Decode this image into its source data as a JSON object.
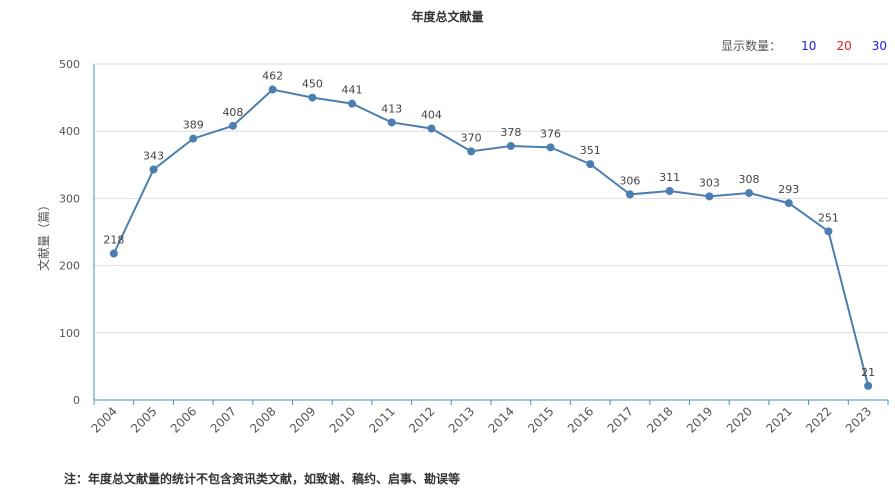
{
  "header": {
    "title": "年度总文献量"
  },
  "count_selector": {
    "label": "显示数量：",
    "options": [
      {
        "label": "10",
        "color": "#1a1ae6"
      },
      {
        "label": "20",
        "color": "#e61a1a"
      },
      {
        "label": "30",
        "color": "#1a1ae6"
      }
    ]
  },
  "footnote": "注：年度总文献量的统计不包含资讯类文献，如致谢、稿约、启事、勘误等",
  "chart_data": {
    "type": "line",
    "title": "年度总文献量",
    "ylabel": "文献量（篇）",
    "xlabel": "",
    "ylim": [
      0,
      500
    ],
    "yticks": [
      0,
      100,
      200,
      300,
      400,
      500
    ],
    "x": [
      "2004",
      "2005",
      "2006",
      "2007",
      "2008",
      "2009",
      "2010",
      "2011",
      "2012",
      "2013",
      "2014",
      "2015",
      "2016",
      "2017",
      "2018",
      "2019",
      "2020",
      "2021",
      "2022",
      "2023"
    ],
    "values": [
      218,
      343,
      389,
      408,
      462,
      450,
      441,
      413,
      404,
      370,
      378,
      376,
      351,
      306,
      311,
      303,
      308,
      293,
      251,
      21
    ],
    "grid": true,
    "line_color": "#4a7fb0"
  }
}
